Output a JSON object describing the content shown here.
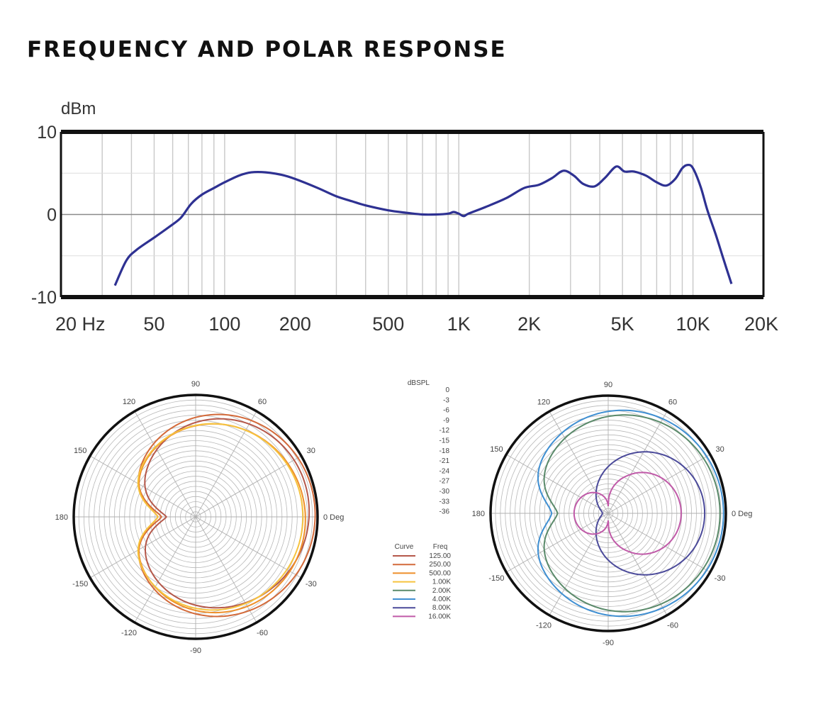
{
  "page": {
    "title": "FREQUENCY AND POLAR RESPONSE"
  },
  "chart_data": [
    {
      "type": "line",
      "chart": "frequency-response",
      "ylabel": "dBm",
      "x_scale": "log",
      "xlim": [
        20,
        20000
      ],
      "ylim": [
        -10,
        10
      ],
      "y_ticks": [
        {
          "value": 10,
          "label": "10"
        },
        {
          "value": 0,
          "label": "0"
        },
        {
          "value": -10,
          "label": "-10"
        }
      ],
      "x_ticks": [
        {
          "value": 20,
          "label": "20 Hz"
        },
        {
          "value": 50,
          "label": "50"
        },
        {
          "value": 100,
          "label": "100"
        },
        {
          "value": 200,
          "label": "200"
        },
        {
          "value": 500,
          "label": "500"
        },
        {
          "value": 1000,
          "label": "1K"
        },
        {
          "value": 2000,
          "label": "2K"
        },
        {
          "value": 5000,
          "label": "5K"
        },
        {
          "value": 10000,
          "label": "10K"
        },
        {
          "value": 20000,
          "label": "20K"
        }
      ],
      "grid": true,
      "series": [
        {
          "color": "#2e3192",
          "points": [
            [
              34,
              -8.6
            ],
            [
              38,
              -5.6
            ],
            [
              42,
              -4.3
            ],
            [
              50,
              -2.8
            ],
            [
              58,
              -1.5
            ],
            [
              65,
              -0.4
            ],
            [
              72,
              1.3
            ],
            [
              80,
              2.4
            ],
            [
              90,
              3.2
            ],
            [
              100,
              3.9
            ],
            [
              115,
              4.7
            ],
            [
              130,
              5.1
            ],
            [
              150,
              5.1
            ],
            [
              175,
              4.8
            ],
            [
              200,
              4.3
            ],
            [
              250,
              3.2
            ],
            [
              300,
              2.2
            ],
            [
              350,
              1.6
            ],
            [
              400,
              1.1
            ],
            [
              500,
              0.5
            ],
            [
              600,
              0.2
            ],
            [
              700,
              0.0
            ],
            [
              800,
              0.0
            ],
            [
              900,
              0.1
            ],
            [
              950,
              0.3
            ],
            [
              1000,
              0.1
            ],
            [
              1050,
              -0.2
            ],
            [
              1100,
              0.1
            ],
            [
              1300,
              0.9
            ],
            [
              1600,
              2.0
            ],
            [
              1900,
              3.2
            ],
            [
              2200,
              3.6
            ],
            [
              2500,
              4.4
            ],
            [
              2800,
              5.3
            ],
            [
              3100,
              4.7
            ],
            [
              3400,
              3.7
            ],
            [
              3800,
              3.4
            ],
            [
              4200,
              4.4
            ],
            [
              4700,
              5.8
            ],
            [
              5100,
              5.2
            ],
            [
              5600,
              5.2
            ],
            [
              6300,
              4.7
            ],
            [
              7000,
              3.9
            ],
            [
              7700,
              3.5
            ],
            [
              8400,
              4.3
            ],
            [
              9000,
              5.6
            ],
            [
              9500,
              6.0
            ],
            [
              10000,
              5.6
            ],
            [
              10800,
              3.3
            ],
            [
              11500,
              0.6
            ],
            [
              12500,
              -2.4
            ],
            [
              13500,
              -5.4
            ],
            [
              14600,
              -8.4
            ]
          ]
        }
      ]
    },
    {
      "type": "polar",
      "chart": "polar-left",
      "angle_labels": [
        {
          "deg": 90,
          "label": "90"
        },
        {
          "deg": 60,
          "label": "60"
        },
        {
          "deg": 30,
          "label": "30"
        },
        {
          "deg": 0,
          "label": "0 Deg"
        },
        {
          "deg": -30,
          "label": "-30"
        },
        {
          "deg": -60,
          "label": "-60"
        },
        {
          "deg": -90,
          "label": "-90"
        },
        {
          "deg": -120,
          "label": "-120"
        },
        {
          "deg": -150,
          "label": "-150"
        },
        {
          "deg": 180,
          "label": "180"
        },
        {
          "deg": 150,
          "label": "150"
        },
        {
          "deg": 120,
          "label": "120"
        }
      ],
      "series": [
        {
          "freq": "125.00",
          "color": "#b5584a",
          "front": 0.93,
          "rear": 0.36,
          "notch": 0.12,
          "skew": 0.05
        },
        {
          "freq": "250.00",
          "color": "#d36a3a",
          "front": 0.98,
          "rear": 0.43,
          "notch": 0.15,
          "skew": 0.02
        },
        {
          "freq": "500.00",
          "color": "#ee8f2a",
          "front": 0.9,
          "rear": 0.45,
          "notch": 0.14,
          "skew": -0.02
        },
        {
          "freq": "1.00K",
          "color": "#f6c33f",
          "front": 0.88,
          "rear": 0.47,
          "notch": 0.16,
          "skew": 0.0
        }
      ]
    },
    {
      "type": "polar",
      "chart": "polar-right",
      "angle_labels": [
        {
          "deg": 90,
          "label": "90"
        },
        {
          "deg": 60,
          "label": "60"
        },
        {
          "deg": 30,
          "label": "30"
        },
        {
          "deg": 0,
          "label": "0 Deg"
        },
        {
          "deg": -30,
          "label": "-30"
        },
        {
          "deg": -60,
          "label": "-60"
        },
        {
          "deg": -90,
          "label": "-90"
        },
        {
          "deg": -120,
          "label": "-120"
        },
        {
          "deg": -150,
          "label": "-150"
        },
        {
          "deg": 180,
          "label": "180"
        },
        {
          "deg": 150,
          "label": "150"
        },
        {
          "deg": 120,
          "label": "120"
        }
      ],
      "series": [
        {
          "freq": "2.00K",
          "color": "#5a8a6a",
          "front": 0.95,
          "rear": 0.55,
          "notch": 0.12,
          "skew": 0.0
        },
        {
          "freq": "4.00K",
          "color": "#3f8fd2",
          "front": 0.98,
          "rear": 0.62,
          "notch": 0.14,
          "skew": 0.0
        },
        {
          "freq": "8.00K",
          "color": "#4b4a9a",
          "front": 0.82,
          "rear": 0.0,
          "notch": 0.0,
          "skew": 0.0,
          "shape": "cardioid"
        },
        {
          "freq": "16.00K",
          "color": "#c05aa8",
          "front": 0.56,
          "rear": 0.23,
          "notch": 0.0,
          "skew": 0.0,
          "shape": "pinch"
        }
      ]
    }
  ],
  "polar_scale": {
    "unit": "dBSPL",
    "ticks": [
      "0",
      "-3",
      "-6",
      "-9",
      "-12",
      "-15",
      "-18",
      "-21",
      "-24",
      "-27",
      "-30",
      "-33",
      "-36"
    ]
  },
  "legend": {
    "curve_header": "Curve",
    "freq_header": "Freq"
  }
}
